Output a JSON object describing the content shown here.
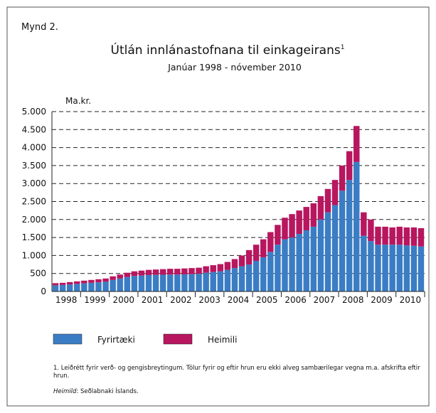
{
  "figure_label": "Mynd 2.",
  "chart_data": {
    "type": "stacked_bar",
    "title": "Útlán innlánastofnana til einkageirans",
    "title_note": "1",
    "subtitle": "Janúar 1998 - nóvember 2010",
    "y_label": "Ma.kr.",
    "categories": [
      "1998",
      null,
      null,
      null,
      "1999",
      null,
      null,
      null,
      "2000",
      null,
      null,
      null,
      "2001",
      null,
      null,
      null,
      "2002",
      null,
      null,
      null,
      "2003",
      null,
      null,
      null,
      "2004",
      null,
      null,
      null,
      "2005",
      null,
      null,
      null,
      "2006",
      null,
      null,
      null,
      "2007",
      null,
      null,
      null,
      "2008",
      null,
      null,
      null,
      "2009",
      null,
      null,
      null,
      "2010",
      null,
      null,
      null
    ],
    "series": [
      {
        "name": "Fyrirtæki",
        "color": "#3b7dc4",
        "values": [
          170,
          180,
          195,
          210,
          225,
          240,
          255,
          270,
          320,
          360,
          400,
          430,
          440,
          455,
          460,
          465,
          470,
          470,
          475,
          480,
          490,
          520,
          540,
          560,
          600,
          650,
          700,
          750,
          850,
          950,
          1100,
          1300,
          1450,
          1500,
          1600,
          1700,
          1800,
          2000,
          2200,
          2400,
          2800,
          3100,
          3600,
          1550,
          1400,
          1300,
          1300,
          1300,
          1300,
          1280,
          1270,
          1250
        ]
      },
      {
        "name": "Heimili",
        "color": "#b8165f",
        "values": [
          60,
          60,
          65,
          70,
          75,
          80,
          85,
          90,
          100,
          110,
          120,
          130,
          140,
          145,
          150,
          155,
          160,
          160,
          165,
          170,
          170,
          180,
          190,
          200,
          220,
          250,
          300,
          400,
          450,
          500,
          550,
          550,
          600,
          650,
          650,
          650,
          650,
          650,
          650,
          700,
          700,
          800,
          1000,
          650,
          600,
          500,
          500,
          480,
          500,
          500,
          510,
          510
        ]
      }
    ],
    "ylim": [
      0,
      5000
    ],
    "yticks": [
      0,
      500,
      {
        "value": 1000,
        "label": "1.000"
      },
      {
        "value": 1500,
        "label": "1.500"
      },
      {
        "value": 2000,
        "label": "2.000"
      },
      {
        "value": 2500,
        "label": "2.500"
      },
      {
        "value": 3000,
        "label": "3.000"
      },
      {
        "value": 3500,
        "label": "3.500"
      },
      {
        "value": 4000,
        "label": "4.000"
      },
      {
        "value": 4500,
        "label": "4.500"
      },
      {
        "value": 5000,
        "label": "5.000"
      }
    ],
    "grid": true
  },
  "footnote": "1. Leiðrétt fyrir verð- og gengisbreytingum. Tölur fyrir og eftir hrun eru ekki alveg sambærilegar vegna m.a. afskrifta eftir hrun.",
  "source_label": "Heimild",
  "source_text": ": Seðlabnaki Íslands."
}
